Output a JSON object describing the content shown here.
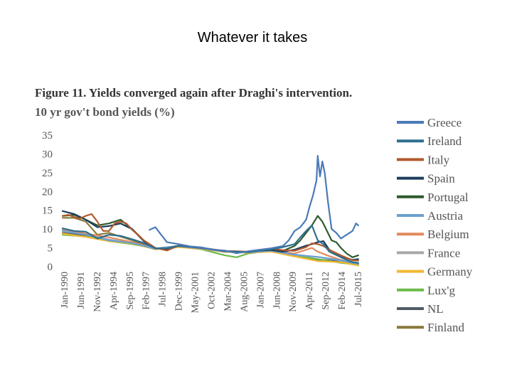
{
  "slide": {
    "title": "Whatever it takes"
  },
  "figure": {
    "title": "Figure 11.   Yields converged again after Draghi's intervention.",
    "subtitle": "10 yr gov't bond yields (%)"
  },
  "chart_data": {
    "type": "line",
    "title": "Figure 11.   Yields converged again after Draghi's intervention.",
    "ylabel": "10 yr gov't bond yields (%)",
    "xlabel": "",
    "ylim": [
      0,
      35
    ],
    "yticks": [
      0,
      5,
      10,
      15,
      20,
      25,
      30,
      35
    ],
    "xlim": [
      1990.0,
      2016.0
    ],
    "xticks": [
      "Jan-1990",
      "Jun-1991",
      "Nov-1992",
      "Apr-1994",
      "Sep-1995",
      "Feb-1997",
      "Jul-1998",
      "Dec-1999",
      "May-2001",
      "Oct-2002",
      "Mar-2004",
      "Aug-2005",
      "Jan-2007",
      "Jun-2008",
      "Nov-2009",
      "Apr-2011",
      "Sep-2012",
      "Feb-2014",
      "Jul-2015"
    ],
    "grid": false,
    "legend_position": "right",
    "series": [
      {
        "name": "Greece",
        "color": "#4a7ab8",
        "x": [
          1997.5,
          1998.0,
          1998.5,
          1999.0,
          2000.0,
          2001.0,
          2002.0,
          2003.0,
          2004.0,
          2005.0,
          2006.0,
          2007.0,
          2008.0,
          2009.0,
          2009.5,
          2010.0,
          2010.5,
          2011.0,
          2011.3,
          2011.6,
          2011.9,
          2012.0,
          2012.2,
          2012.4,
          2012.6,
          2012.9,
          2013.2,
          2013.6,
          2014.0,
          2014.5,
          2015.0,
          2015.3,
          2015.5
        ],
        "y": [
          9.8,
          10.5,
          8.5,
          6.5,
          6.0,
          5.4,
          5.1,
          4.5,
          4.3,
          3.6,
          4.1,
          4.5,
          4.9,
          5.5,
          7.0,
          9.5,
          10.5,
          12.5,
          16.0,
          19.0,
          23.0,
          29.5,
          24.0,
          28.0,
          25.0,
          17.0,
          10.0,
          9.0,
          7.5,
          8.5,
          9.5,
          11.5,
          11.0
        ]
      },
      {
        "name": "Ireland",
        "color": "#2d6e8e",
        "x": [
          1990.0,
          1991.0,
          1992.0,
          1993.0,
          1994.0,
          1995.0,
          1996.0,
          1997.0,
          1998.0,
          1999.0,
          2000.0,
          2002.0,
          2004.0,
          2006.0,
          2007.0,
          2008.0,
          2009.0,
          2010.0,
          2010.5,
          2011.0,
          2011.5,
          2012.0,
          2012.5,
          2013.0,
          2014.0,
          2015.0,
          2015.5
        ],
        "y": [
          10.2,
          9.5,
          9.3,
          7.5,
          8.5,
          8.2,
          7.3,
          6.3,
          4.9,
          4.9,
          5.5,
          5.0,
          4.1,
          3.9,
          4.3,
          4.6,
          5.2,
          6.0,
          7.8,
          9.5,
          11.0,
          7.0,
          6.0,
          4.0,
          2.5,
          1.2,
          1.0
        ]
      },
      {
        "name": "Italy",
        "color": "#b05a2e",
        "x": [
          1990.0,
          1990.5,
          1991.0,
          1991.5,
          1992.0,
          1992.5,
          1993.0,
          1993.5,
          1994.0,
          1994.5,
          1995.0,
          1995.5,
          1996.0,
          1996.5,
          1997.0,
          1998.0,
          1999.0,
          2000.0,
          2002.0,
          2004.0,
          2006.0,
          2007.0,
          2008.0,
          2009.0,
          2010.0,
          2011.0,
          2011.5,
          2012.0,
          2012.5,
          2013.0,
          2014.0,
          2015.0,
          2015.5
        ],
        "y": [
          13.5,
          13.8,
          13.2,
          12.8,
          13.5,
          14.0,
          12.0,
          9.5,
          9.5,
          11.5,
          12.0,
          11.5,
          9.8,
          8.5,
          7.0,
          5.0,
          4.3,
          5.6,
          5.0,
          4.2,
          4.0,
          4.5,
          4.8,
          4.4,
          4.2,
          5.2,
          6.2,
          6.0,
          5.5,
          4.5,
          3.0,
          1.7,
          1.6
        ]
      },
      {
        "name": "Spain",
        "color": "#1d3d5c",
        "x": [
          1990.0,
          1991.0,
          1992.0,
          1993.0,
          1994.0,
          1995.0,
          1996.0,
          1997.0,
          1998.0,
          1999.0,
          2000.0,
          2002.0,
          2004.0,
          2006.0,
          2007.0,
          2008.0,
          2009.0,
          2010.0,
          2011.0,
          2011.5,
          2012.0,
          2012.5,
          2013.0,
          2014.0,
          2015.0,
          2015.5
        ],
        "y": [
          14.8,
          14.0,
          12.5,
          10.5,
          10.8,
          11.5,
          10.0,
          6.8,
          4.9,
          4.7,
          5.6,
          5.0,
          4.1,
          3.9,
          4.3,
          4.4,
          4.0,
          4.5,
          5.6,
          6.0,
          6.5,
          6.8,
          4.5,
          2.8,
          1.8,
          2.0
        ]
      },
      {
        "name": "Portugal",
        "color": "#2e5a2e",
        "x": [
          1990.0,
          1991.0,
          1992.0,
          1993.0,
          1994.0,
          1995.0,
          1996.0,
          1997.0,
          1998.0,
          1999.0,
          2000.0,
          2002.0,
          2004.0,
          2006.0,
          2007.0,
          2008.0,
          2009.0,
          2010.0,
          2010.5,
          2011.0,
          2011.5,
          2012.0,
          2012.4,
          2012.8,
          2013.2,
          2013.6,
          2014.0,
          2014.5,
          2015.0,
          2015.5
        ],
        "y": [
          13.5,
          13.8,
          12.5,
          11.0,
          11.5,
          12.5,
          10.0,
          7.0,
          4.9,
          4.8,
          5.6,
          5.0,
          4.1,
          3.9,
          4.3,
          4.6,
          4.2,
          5.5,
          7.0,
          9.0,
          11.0,
          13.5,
          12.0,
          9.5,
          7.0,
          6.5,
          5.0,
          3.5,
          2.5,
          3.0
        ]
      },
      {
        "name": "Austria",
        "color": "#6ba0d0",
        "x": [
          1990.0,
          1992.0,
          1994.0,
          1996.0,
          1998.0,
          2000.0,
          2002.0,
          2004.0,
          2006.0,
          2008.0,
          2010.0,
          2012.0,
          2014.0,
          2015.5
        ],
        "y": [
          9.5,
          8.5,
          7.0,
          6.3,
          4.8,
          5.5,
          4.9,
          4.1,
          3.8,
          4.3,
          3.2,
          2.6,
          1.7,
          0.7
        ]
      },
      {
        "name": "Belgium",
        "color": "#e08a5c",
        "x": [
          1990.0,
          1992.0,
          1994.0,
          1996.0,
          1998.0,
          2000.0,
          2002.0,
          2004.0,
          2006.0,
          2008.0,
          2010.0,
          2011.5,
          2012.0,
          2013.0,
          2014.0,
          2015.5
        ],
        "y": [
          10.0,
          8.8,
          7.8,
          6.5,
          4.8,
          5.5,
          4.9,
          4.1,
          3.8,
          4.4,
          3.5,
          5.0,
          4.0,
          2.8,
          1.8,
          0.9
        ]
      },
      {
        "name": "France",
        "color": "#a8a8a8",
        "x": [
          1990.0,
          1992.0,
          1994.0,
          1996.0,
          1998.0,
          2000.0,
          2002.0,
          2004.0,
          2006.0,
          2008.0,
          2010.0,
          2012.0,
          2014.0,
          2015.5
        ],
        "y": [
          9.8,
          8.6,
          7.2,
          6.3,
          4.7,
          5.4,
          4.8,
          4.0,
          3.8,
          4.2,
          3.1,
          2.6,
          1.6,
          0.8
        ]
      },
      {
        "name": "Germany",
        "color": "#f2b830",
        "x": [
          1990.0,
          1992.0,
          1994.0,
          1996.0,
          1998.0,
          2000.0,
          2002.0,
          2004.0,
          2006.0,
          2008.0,
          2010.0,
          2012.0,
          2014.0,
          2015.5
        ],
        "y": [
          8.8,
          7.9,
          6.8,
          6.2,
          4.6,
          5.2,
          4.7,
          3.9,
          3.7,
          4.0,
          2.7,
          1.5,
          1.2,
          0.3
        ]
      },
      {
        "name": "Lux'g",
        "color": "#6cba4a",
        "x": [
          1990.0,
          1992.0,
          1994.0,
          1996.0,
          1998.0,
          2000.0,
          2002.0,
          2004.0,
          2005.0,
          2006.0,
          2008.0,
          2010.0,
          2012.0,
          2014.0,
          2015.5
        ],
        "y": [
          8.5,
          8.0,
          6.8,
          6.0,
          4.8,
          5.3,
          4.6,
          3.0,
          2.5,
          3.5,
          4.3,
          3.0,
          2.0,
          1.0,
          0.5
        ]
      },
      {
        "name": "NL",
        "color": "#4e5b66",
        "x": [
          1990.0,
          1992.0,
          1994.0,
          1996.0,
          1998.0,
          2000.0,
          2002.0,
          2004.0,
          2006.0,
          2008.0,
          2010.0,
          2012.0,
          2014.0,
          2015.5
        ],
        "y": [
          9.0,
          8.2,
          7.0,
          6.2,
          4.7,
          5.4,
          4.8,
          4.0,
          3.8,
          4.2,
          3.0,
          1.9,
          1.4,
          0.6
        ]
      },
      {
        "name": "Finland",
        "color": "#8a7a3a",
        "x": [
          1990.0,
          1991.0,
          1992.0,
          1993.0,
          1994.0,
          1996.0,
          1998.0,
          2000.0,
          2002.0,
          2004.0,
          2006.0,
          2008.0,
          2010.0,
          2012.0,
          2014.0,
          2015.5
        ],
        "y": [
          13.0,
          13.0,
          12.0,
          8.5,
          9.0,
          7.0,
          4.8,
          5.5,
          4.9,
          4.0,
          3.8,
          4.3,
          3.0,
          1.9,
          1.4,
          0.7
        ]
      }
    ]
  }
}
